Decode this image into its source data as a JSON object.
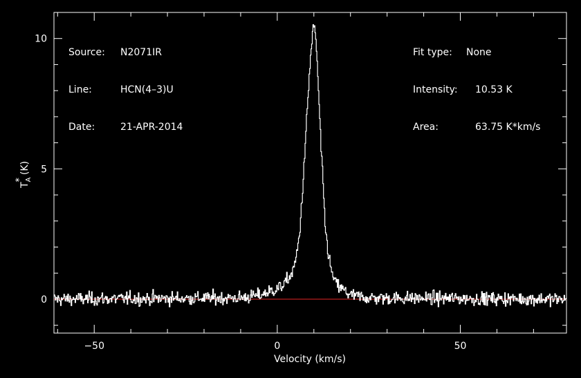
{
  "header_left": {
    "source_label": "Source:",
    "source_value": "N2071IR",
    "line_label": "Line:",
    "line_value": "HCN(4–3)U",
    "date_label": "Date:",
    "date_value": "21-APR-2014"
  },
  "header_right": {
    "fit_label": "Fit type:",
    "fit_value": "None",
    "intensity_label": "Intensity:",
    "intensity_value": "10.53 K",
    "area_label": "Area:",
    "area_value": "63.75 K*km/s"
  },
  "chart_data": {
    "type": "line",
    "xlabel": "Velocity (km/s)",
    "ylabel": "T",
    "ylabel_sub": "A",
    "ylabel_sup": "*",
    "ylabel_unit": "(K)",
    "xlim": [
      -61,
      79
    ],
    "ylim": [
      -1.3,
      11.0
    ],
    "xticks": [
      -50,
      0,
      50
    ],
    "xtick_labels": [
      "−50",
      "0",
      "50"
    ],
    "yticks": [
      0,
      5,
      10
    ],
    "ytick_labels": [
      "0",
      "5",
      "10"
    ],
    "baseline": {
      "y": 0,
      "x_range": [
        -61,
        79
      ],
      "color": "#cc2222"
    },
    "line_color": "#ffffff",
    "peak": {
      "x": 9.8,
      "y": 10.53
    },
    "profile_points": [
      [
        -61,
        0.0
      ],
      [
        -10,
        0.05
      ],
      [
        -5,
        0.15
      ],
      [
        -2,
        0.3
      ],
      [
        0,
        0.4
      ],
      [
        2,
        0.6
      ],
      [
        4,
        1.0
      ],
      [
        5,
        1.5
      ],
      [
        6,
        2.5
      ],
      [
        7,
        4.5
      ],
      [
        8,
        7.0
      ],
      [
        9,
        9.3
      ],
      [
        9.8,
        10.53
      ],
      [
        10.5,
        10.0
      ],
      [
        11,
        8.5
      ],
      [
        12,
        5.5
      ],
      [
        13,
        2.8
      ],
      [
        14,
        1.6
      ],
      [
        15,
        0.9
      ],
      [
        16,
        0.6
      ],
      [
        17,
        0.45
      ],
      [
        18,
        0.35
      ],
      [
        20,
        0.15
      ],
      [
        25,
        0.05
      ],
      [
        79,
        0.0
      ]
    ],
    "noise_rms": 0.18
  }
}
